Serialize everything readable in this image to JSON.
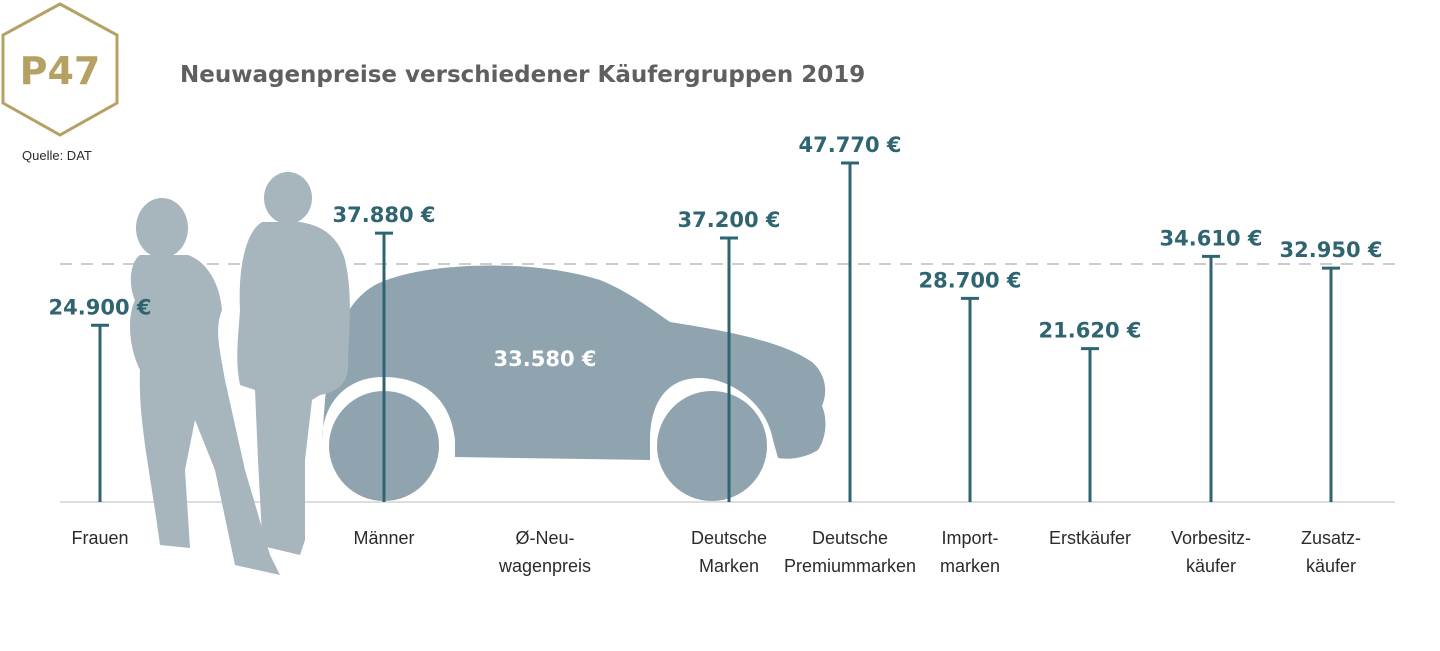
{
  "badge": {
    "label": "P47"
  },
  "source": "Quelle: DAT",
  "colors": {
    "badge": "#b6a165",
    "value": "#2f6471",
    "stem": "#2f6471",
    "silhouette_people": "#a7b5bd",
    "silhouette_car": "#8fa4ae",
    "baseline": "#dddddd",
    "avg_line": "#cccccc"
  },
  "icons": {
    "people": "people-silhouette-icon",
    "car": "car-silhouette-icon"
  },
  "chart_data": {
    "type": "bar",
    "title": "Neuwagenpreise verschiedener Käufergruppen 2019",
    "categories": [
      [
        "Frauen"
      ],
      [
        "Männer"
      ],
      [
        "Ø-Neu-",
        "wagenpreis"
      ],
      [
        "Deutsche",
        "Marken"
      ],
      [
        "Deutsche",
        "Premiummarken"
      ],
      [
        "Import-",
        "marken"
      ],
      [
        "Erstkäufer"
      ],
      [
        "Vorbesitz-",
        "käufer"
      ],
      [
        "Zusatz-",
        "käufer"
      ]
    ],
    "values": [
      24900,
      37880,
      33580,
      37200,
      47770,
      28700,
      21620,
      34610,
      32950
    ],
    "value_labels": [
      "24.900 €",
      "37.880 €",
      "33.580 €",
      "37.200 €",
      "47.770 €",
      "28.700 €",
      "21.620 €",
      "34.610 €",
      "32.950 €"
    ],
    "average_index": 2,
    "reference_line": {
      "value": 33580,
      "style": "dashed"
    },
    "ylim": [
      0,
      50000
    ],
    "xlabel": "",
    "ylabel": "",
    "grid": false,
    "legend": "none"
  }
}
